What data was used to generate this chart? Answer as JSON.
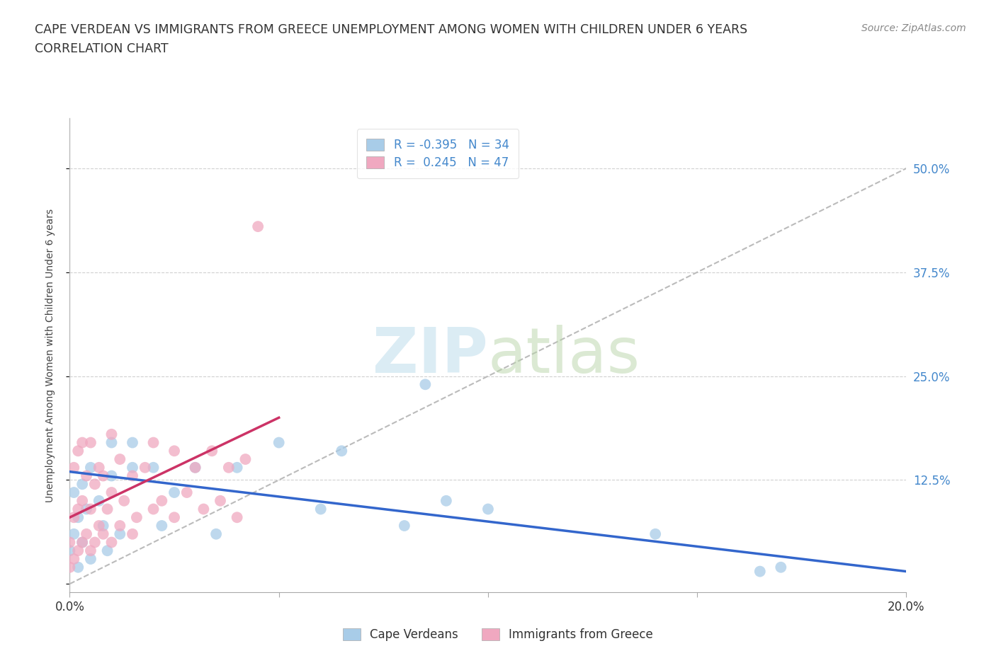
{
  "title_line1": "CAPE VERDEAN VS IMMIGRANTS FROM GREECE UNEMPLOYMENT AMONG WOMEN WITH CHILDREN UNDER 6 YEARS",
  "title_line2": "CORRELATION CHART",
  "source": "Source: ZipAtlas.com",
  "ylabel": "Unemployment Among Women with Children Under 6 years",
  "xlim": [
    0.0,
    0.2
  ],
  "ylim": [
    -0.01,
    0.56
  ],
  "ytick_positions": [
    0.0,
    0.125,
    0.25,
    0.375,
    0.5
  ],
  "ytick_labels": [
    "",
    "12.5%",
    "25.0%",
    "37.5%",
    "50.0%"
  ],
  "xtick_positions": [
    0.0,
    0.05,
    0.1,
    0.15,
    0.2
  ],
  "xtick_labels": [
    "0.0%",
    "",
    "",
    "",
    "20.0%"
  ],
  "grid_color": "#d0d0d0",
  "background_color": "#ffffff",
  "cape_verdean_color": "#a8cce8",
  "greece_color": "#f0a8c0",
  "cape_verdean_R": -0.395,
  "cape_verdean_N": 34,
  "greece_R": 0.245,
  "greece_N": 47,
  "legend_label_cape": "Cape Verdeans",
  "legend_label_greece": "Immigrants from Greece",
  "trend_line_color_cape": "#3366cc",
  "trend_line_color_greece": "#cc3366",
  "watermark_color": "#cce4f0",
  "ytick_color": "#4488cc",
  "xtick_color": "#333333",
  "cape_verdean_x": [
    0.0,
    0.001,
    0.001,
    0.002,
    0.002,
    0.003,
    0.003,
    0.004,
    0.005,
    0.005,
    0.007,
    0.008,
    0.009,
    0.01,
    0.01,
    0.012,
    0.015,
    0.015,
    0.02,
    0.022,
    0.025,
    0.03,
    0.035,
    0.04,
    0.05,
    0.06,
    0.065,
    0.08,
    0.085,
    0.09,
    0.1,
    0.14,
    0.165,
    0.17
  ],
  "cape_verdean_y": [
    0.04,
    0.06,
    0.11,
    0.02,
    0.08,
    0.05,
    0.12,
    0.09,
    0.03,
    0.14,
    0.1,
    0.07,
    0.04,
    0.13,
    0.17,
    0.06,
    0.14,
    0.17,
    0.14,
    0.07,
    0.11,
    0.14,
    0.06,
    0.14,
    0.17,
    0.09,
    0.16,
    0.07,
    0.24,
    0.1,
    0.09,
    0.06,
    0.015,
    0.02
  ],
  "greece_x": [
    0.0,
    0.0,
    0.001,
    0.001,
    0.001,
    0.002,
    0.002,
    0.002,
    0.003,
    0.003,
    0.003,
    0.004,
    0.004,
    0.005,
    0.005,
    0.005,
    0.006,
    0.006,
    0.007,
    0.007,
    0.008,
    0.008,
    0.009,
    0.01,
    0.01,
    0.01,
    0.012,
    0.012,
    0.013,
    0.015,
    0.015,
    0.016,
    0.018,
    0.02,
    0.02,
    0.022,
    0.025,
    0.025,
    0.028,
    0.03,
    0.032,
    0.034,
    0.036,
    0.038,
    0.04,
    0.042,
    0.045
  ],
  "greece_y": [
    0.02,
    0.05,
    0.03,
    0.08,
    0.14,
    0.04,
    0.09,
    0.16,
    0.05,
    0.1,
    0.17,
    0.06,
    0.13,
    0.04,
    0.09,
    0.17,
    0.05,
    0.12,
    0.07,
    0.14,
    0.06,
    0.13,
    0.09,
    0.05,
    0.11,
    0.18,
    0.07,
    0.15,
    0.1,
    0.06,
    0.13,
    0.08,
    0.14,
    0.09,
    0.17,
    0.1,
    0.08,
    0.16,
    0.11,
    0.14,
    0.09,
    0.16,
    0.1,
    0.14,
    0.08,
    0.15,
    0.43
  ],
  "ref_line_x": [
    0.0,
    0.2
  ],
  "ref_line_y": [
    0.0,
    0.5
  ],
  "cape_trend_x": [
    0.0,
    0.2
  ],
  "cape_trend_y_start": 0.135,
  "cape_trend_y_end": 0.015,
  "greece_trend_x": [
    0.0,
    0.05
  ],
  "greece_trend_y_start": 0.08,
  "greece_trend_y_end": 0.2
}
